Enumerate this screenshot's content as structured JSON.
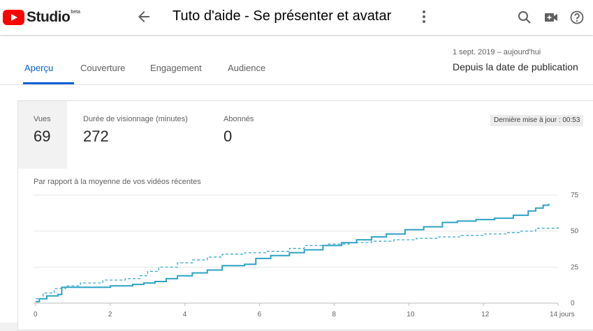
{
  "header": {
    "logo_text": "Studio",
    "logo_badge": "beta",
    "video_title": "Tuto d'aide - Se présenter et avatar"
  },
  "tabs": [
    {
      "label": "Aperçu",
      "active": true
    },
    {
      "label": "Couverture",
      "active": false
    },
    {
      "label": "Engagement",
      "active": false
    },
    {
      "label": "Audience",
      "active": false
    }
  ],
  "date": {
    "range": "1 sept. 2019 – aujourd'hui",
    "label": "Depuis la date de publication"
  },
  "metrics": [
    {
      "label": "Vues",
      "value": "69"
    },
    {
      "label": "Durée de visionnage (minutes)",
      "value": "272"
    },
    {
      "label": "Abonnés",
      "value": "0"
    }
  ],
  "last_update": "Dernière mise à jour : 00:53",
  "comparison_label": "Par rapport à la moyenne de vos vidéos récentes",
  "colors": {
    "accent": "#065fd4",
    "series": "#2ca3c4"
  },
  "chart_data": {
    "type": "line",
    "x_tick_labels": [
      "0",
      "2",
      "4",
      "6",
      "8",
      "10",
      "12",
      "14 jours"
    ],
    "x_ticks": [
      0,
      2,
      4,
      6,
      8,
      10,
      12,
      14
    ],
    "y_tick_labels": [
      "0",
      "25",
      "50",
      "75"
    ],
    "y_ticks": [
      0,
      25,
      50,
      75
    ],
    "xlim": [
      0,
      14
    ],
    "ylim": [
      0,
      75
    ],
    "grid": true,
    "series": [
      {
        "style": "solid",
        "x": [
          0,
          0.1,
          0.3,
          0.6,
          0.7,
          1.5,
          2.0,
          2.6,
          2.9,
          3.2,
          3.5,
          3.8,
          4.2,
          4.6,
          5.0,
          5.6,
          5.9,
          6.3,
          6.8,
          7.2,
          7.7,
          8.2,
          8.6,
          9.0,
          9.4,
          9.9,
          10.4,
          10.9,
          11.3,
          11.8,
          12.3,
          12.8,
          13.2,
          13.4,
          13.6,
          13.75
        ],
        "y": [
          1,
          3,
          5,
          6,
          11,
          11,
          12,
          13,
          14,
          15,
          17,
          19,
          21,
          23,
          26,
          27,
          31,
          33,
          35,
          37,
          40,
          42,
          44,
          46,
          48,
          51,
          53,
          56,
          57,
          58,
          59,
          61,
          64,
          66,
          68,
          69
        ]
      },
      {
        "style": "dashed",
        "x": [
          0,
          0.2,
          0.5,
          0.8,
          1.2,
          1.8,
          2.4,
          2.8,
          3.0,
          3.3,
          3.8,
          4.2,
          4.6,
          5.0,
          5.6,
          6.2,
          6.8,
          7.2,
          7.8,
          8.4,
          9.0,
          9.6,
          10.2,
          10.8,
          11.4,
          12.0,
          12.6,
          13.0,
          13.4,
          14.0
        ],
        "y": [
          3,
          7,
          10,
          12,
          14,
          16,
          17,
          19,
          22,
          25,
          28,
          30,
          32,
          34,
          35,
          36,
          38,
          40,
          41,
          42,
          43,
          44,
          45,
          46,
          47,
          48,
          49,
          50,
          52,
          53
        ]
      }
    ]
  }
}
